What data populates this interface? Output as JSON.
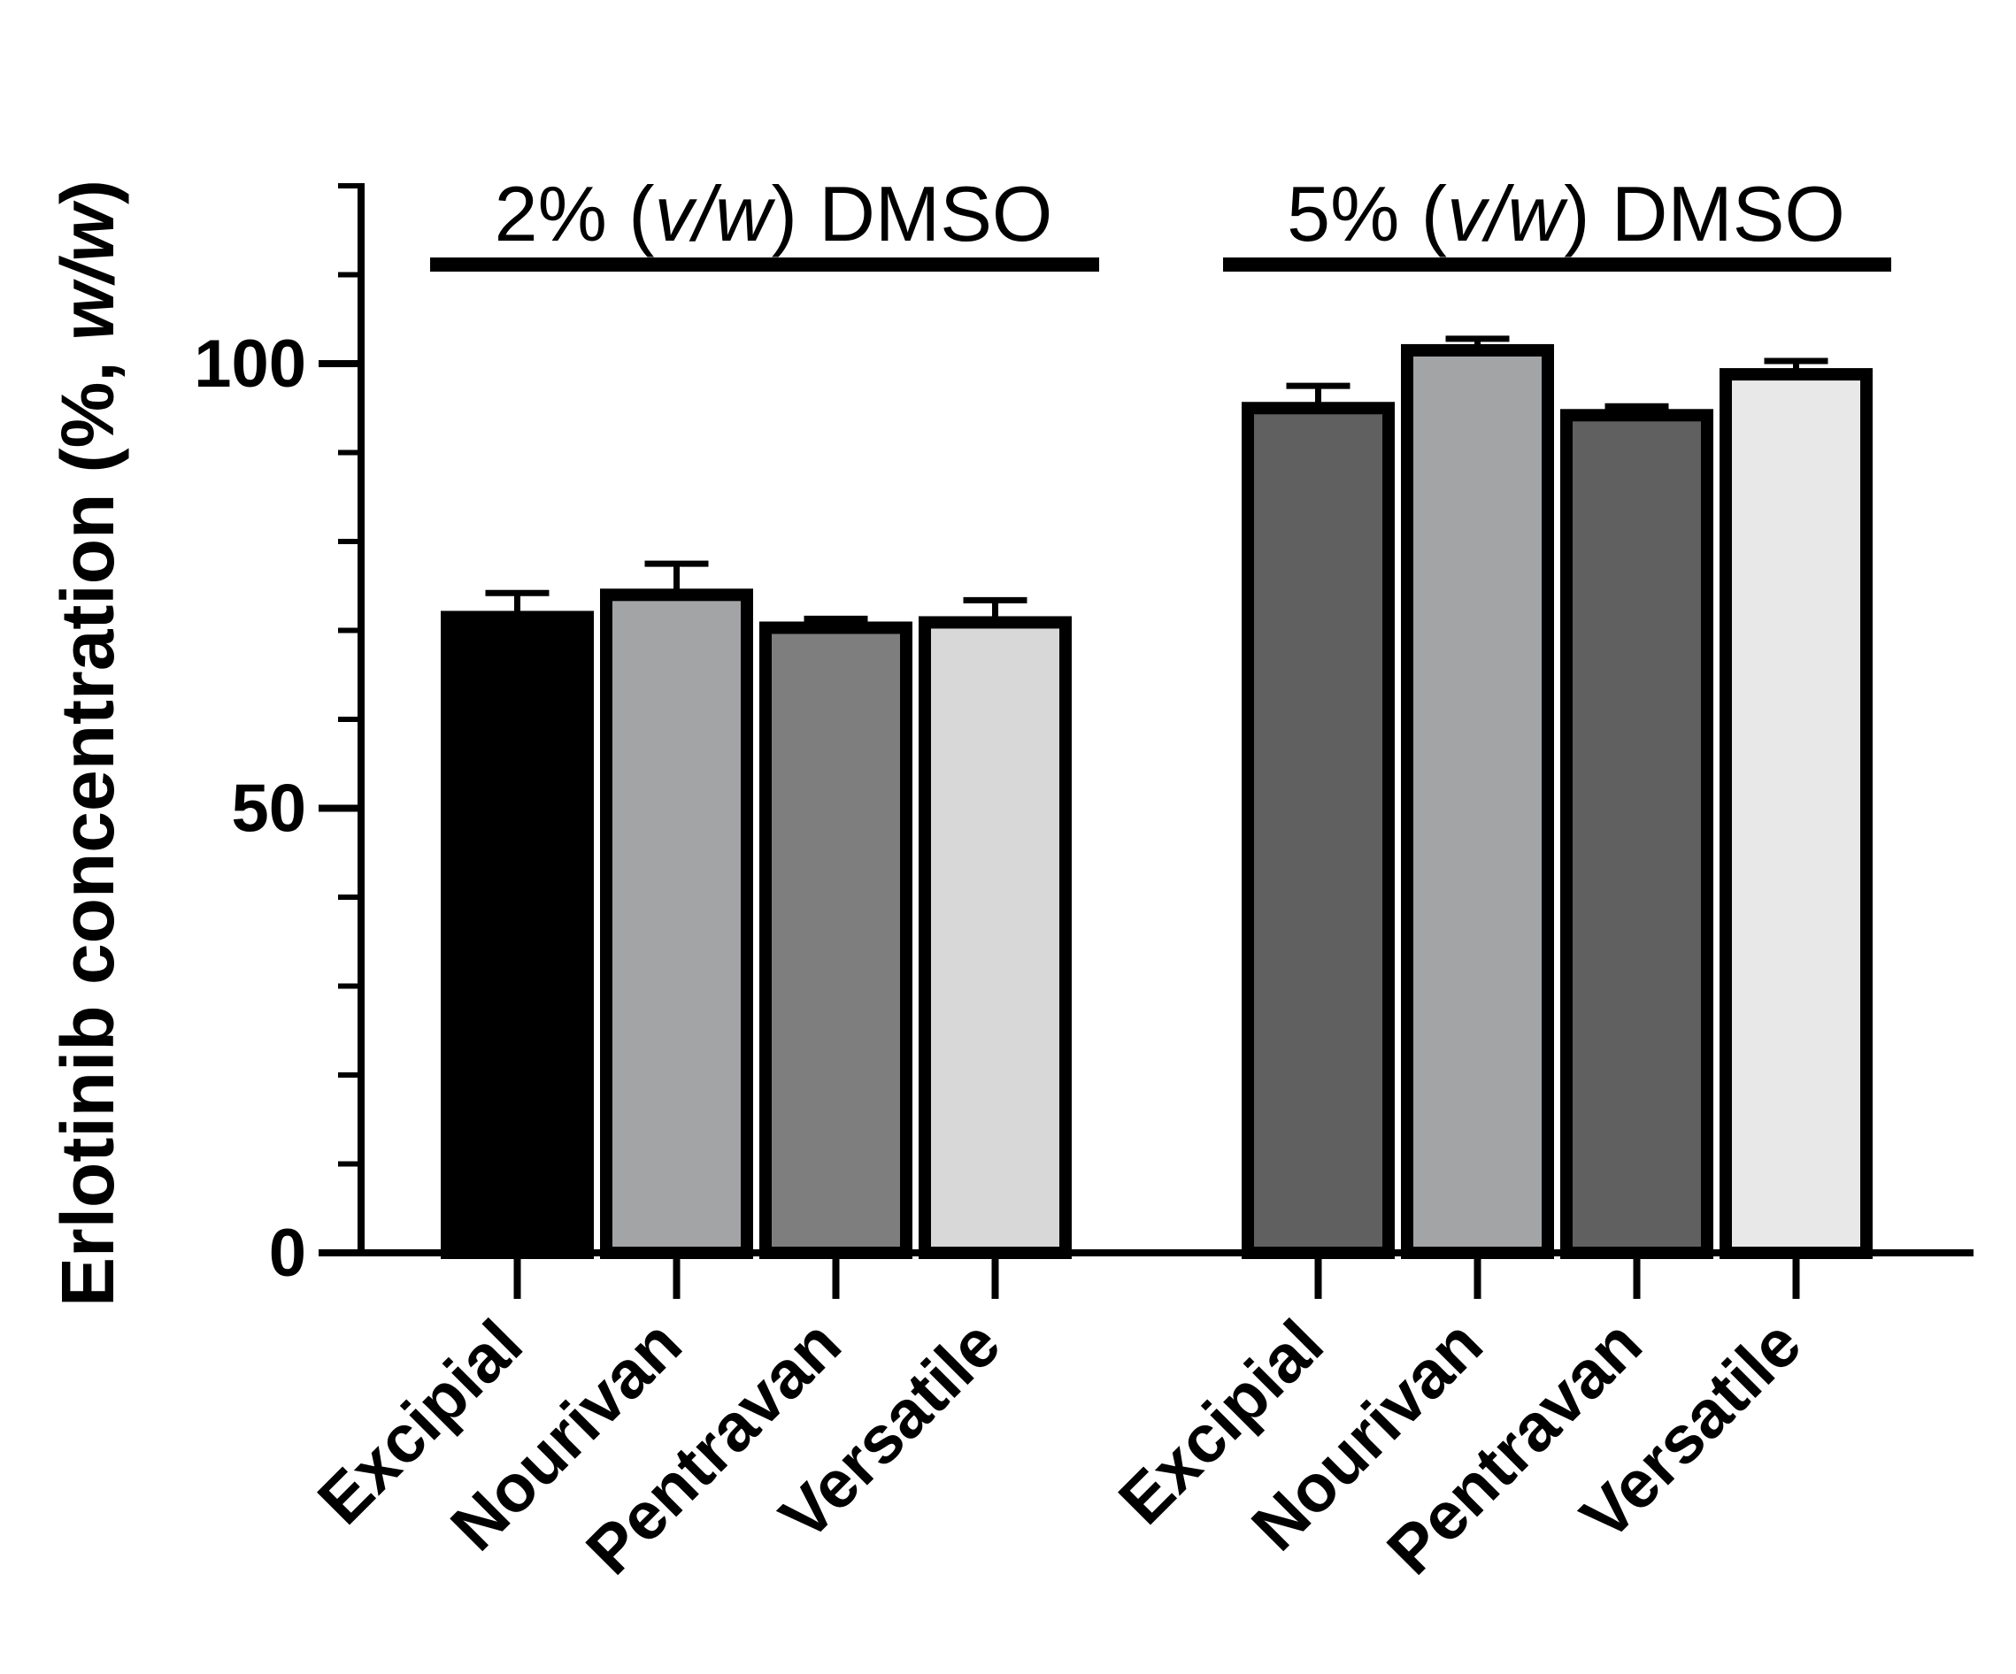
{
  "chart_data": {
    "type": "bar",
    "title": "",
    "xlabel": "",
    "ylabel": {
      "prefix": "Erlotinib concentration (%, ",
      "italic": "w/w",
      "suffix": ")"
    },
    "ylim": [
      0,
      120
    ],
    "yticks": [
      "0",
      "50",
      "100"
    ],
    "groups": [
      {
        "label": {
          "prefix": "2% (",
          "italic": "v/w",
          "suffix": ") DMSO"
        },
        "bars": [
          {
            "category": "Excipial",
            "value": 71.5,
            "error": 2.7,
            "color": "#000000"
          },
          {
            "category": "Nourivan",
            "value": 74.0,
            "error": 3.5,
            "color": "#a3a4a6"
          },
          {
            "category": "Pentravan",
            "value": 70.3,
            "error": 1.0,
            "color": "#7e7e7e"
          },
          {
            "category": "Versatile",
            "value": 70.9,
            "error": 2.5,
            "color": "#d8d8d8"
          }
        ]
      },
      {
        "label": {
          "prefix": "5% (",
          "italic": "v/w",
          "suffix": ") DMSO"
        },
        "bars": [
          {
            "category": "Excipial",
            "value": 95.0,
            "error": 2.5,
            "color": "#606060"
          },
          {
            "category": "Nourivan",
            "value": 101.5,
            "error": 1.3,
            "color": "#a3a4a6"
          },
          {
            "category": "Pentravan",
            "value": 94.2,
            "error": 1.0,
            "color": "#606060"
          },
          {
            "category": "Versatile",
            "value": 98.8,
            "error": 1.5,
            "color": "#e8e8e8"
          }
        ]
      }
    ]
  }
}
